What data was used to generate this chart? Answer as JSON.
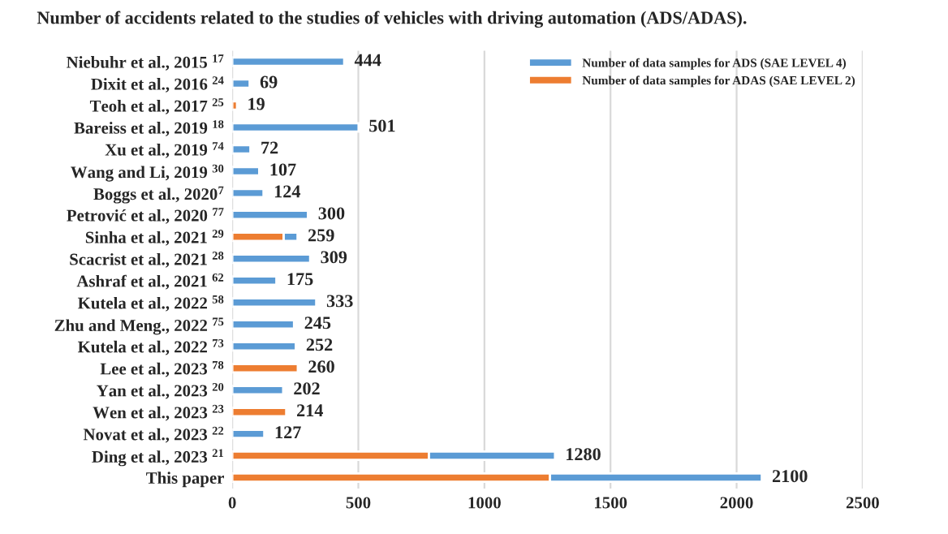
{
  "chart_data": {
    "type": "bar",
    "orientation": "horizontal",
    "stacked": true,
    "title": "Number of accidents related to the studies of vehicles with driving automation (ADS/ADAS).",
    "categories": [
      "Niebuhr et al., 2015 $^{17}$",
      "Dixit et al., 2016 $^{24}$",
      "Teoh et al., 2017 $^{25}$",
      "Bareiss et al., 2019 $^{18}$",
      "Xu et al., 2019 $^{74}$",
      "Wang and Li, 2019 $^{30}$",
      "Boggs et al., 2020$^{7}$",
      "Petrović et al., 2020 $^{77}$",
      "Sinha et al., 2021 $^{29}$",
      "Scacrist et al., 2021 $^{28}$",
      "Ashraf et al., 2021 $^{62}$",
      "Kutela et al., 2022 $^{58}$",
      "Zhu and Meng., 2022 $^{75}$",
      "Kutela et al., 2022 $^{73}$",
      "Lee et al., 2023 $^{78}$",
      "Yan et al., 2023 $^{20}$",
      "Wen et al., 2023 $^{23}$",
      "Novat et al., 2023 $^{22}$",
      "Ding et al., 2023 $^{21}$",
      "This paper"
    ],
    "series": [
      {
        "name": "Number of data samples for ADAS (SAE LEVEL 2)",
        "color": "#ed7d31",
        "values": [
          null,
          null,
          19,
          null,
          null,
          null,
          null,
          null,
          204,
          null,
          null,
          null,
          null,
          null,
          260,
          null,
          214,
          null,
          780,
          1260
        ]
      },
      {
        "name": "Number of data samples for ADS (SAE LEVEL 4)",
        "color": "#5b9bd5",
        "values": [
          444,
          69,
          null,
          501,
          72,
          107,
          124,
          300,
          55,
          309,
          175,
          333,
          245,
          252,
          null,
          202,
          null,
          127,
          500,
          840
        ]
      }
    ],
    "totals": [
      "444",
      "69",
      "19",
      "501",
      "72",
      "107",
      "124",
      "300",
      "259",
      "309",
      "175",
      "333",
      "245",
      "252",
      "260",
      "202",
      "214",
      "127",
      "1280",
      "2100"
    ],
    "xlim": [
      0,
      2500
    ],
    "xticks": [
      0,
      500,
      1000,
      1500,
      2000,
      2500
    ],
    "grid": "x",
    "legend": "top right"
  }
}
